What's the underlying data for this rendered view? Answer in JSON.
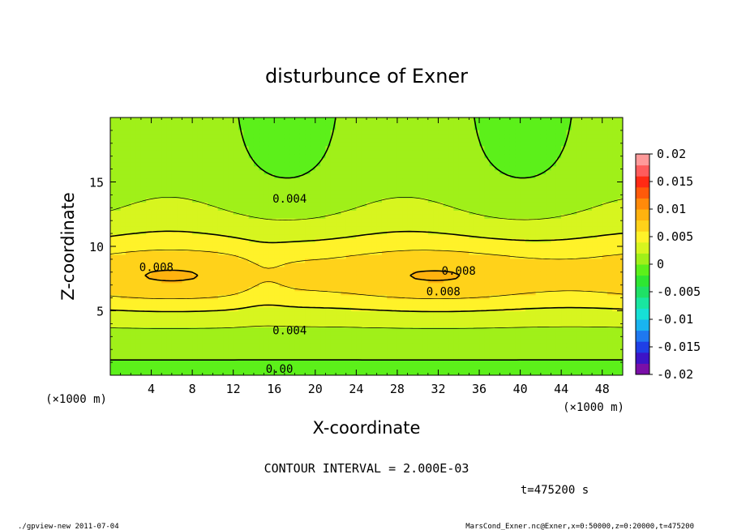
{
  "chart_data": {
    "type": "heatmap",
    "title": "disturbunce of Exner",
    "xlabel": "X-coordinate",
    "ylabel": "Z-coordinate",
    "x_unit_label": "(×1000 m)",
    "xlim": [
      0,
      50
    ],
    "ylim": [
      0,
      20
    ],
    "x_ticks": [
      4,
      8,
      12,
      16,
      20,
      24,
      28,
      32,
      36,
      40,
      44,
      48
    ],
    "y_ticks": [
      5,
      10,
      15
    ],
    "colorbar": {
      "range": [
        -0.02,
        0.02
      ],
      "tick_labels": [
        "0.02",
        "0.015",
        "0.01",
        "0.005",
        "0",
        "-0.005",
        "-0.01",
        "-0.015",
        "-0.02"
      ],
      "colors": [
        "#7a0fa8",
        "#3d14c7",
        "#1f3fe6",
        "#1f78f0",
        "#19b4f0",
        "#16e0d6",
        "#19e6a0",
        "#1fe066",
        "#2ee632",
        "#5cf01a",
        "#a0f019",
        "#d7f51f",
        "#fff229",
        "#ffd21a",
        "#ffb20f",
        "#ff8a0a",
        "#ff5a0a",
        "#ff2a14",
        "#ff5c5c",
        "#ff9a9a"
      ]
    },
    "contour_labels": [
      {
        "text": "0.008",
        "x": 4.5,
        "z": 8.4
      },
      {
        "text": "0.004",
        "x": 17.5,
        "z": 13.7
      },
      {
        "text": "0.008",
        "x": 34.0,
        "z": 8.1
      },
      {
        "text": "0.008",
        "x": 32.5,
        "z": 6.5
      },
      {
        "text": "0.004",
        "x": 17.5,
        "z": 3.5
      },
      {
        "text": "0.00",
        "x": 16.5,
        "z": 0.5
      }
    ]
  },
  "footer": {
    "contour_interval": "CONTOUR INTERVAL = 2.000E-03",
    "time": "t=475200 s",
    "program": "./gpview-new  2011-07-04",
    "source": "MarsCond_Exner.nc@Exner,x=0:50000,z=0:20000,t=475200"
  }
}
